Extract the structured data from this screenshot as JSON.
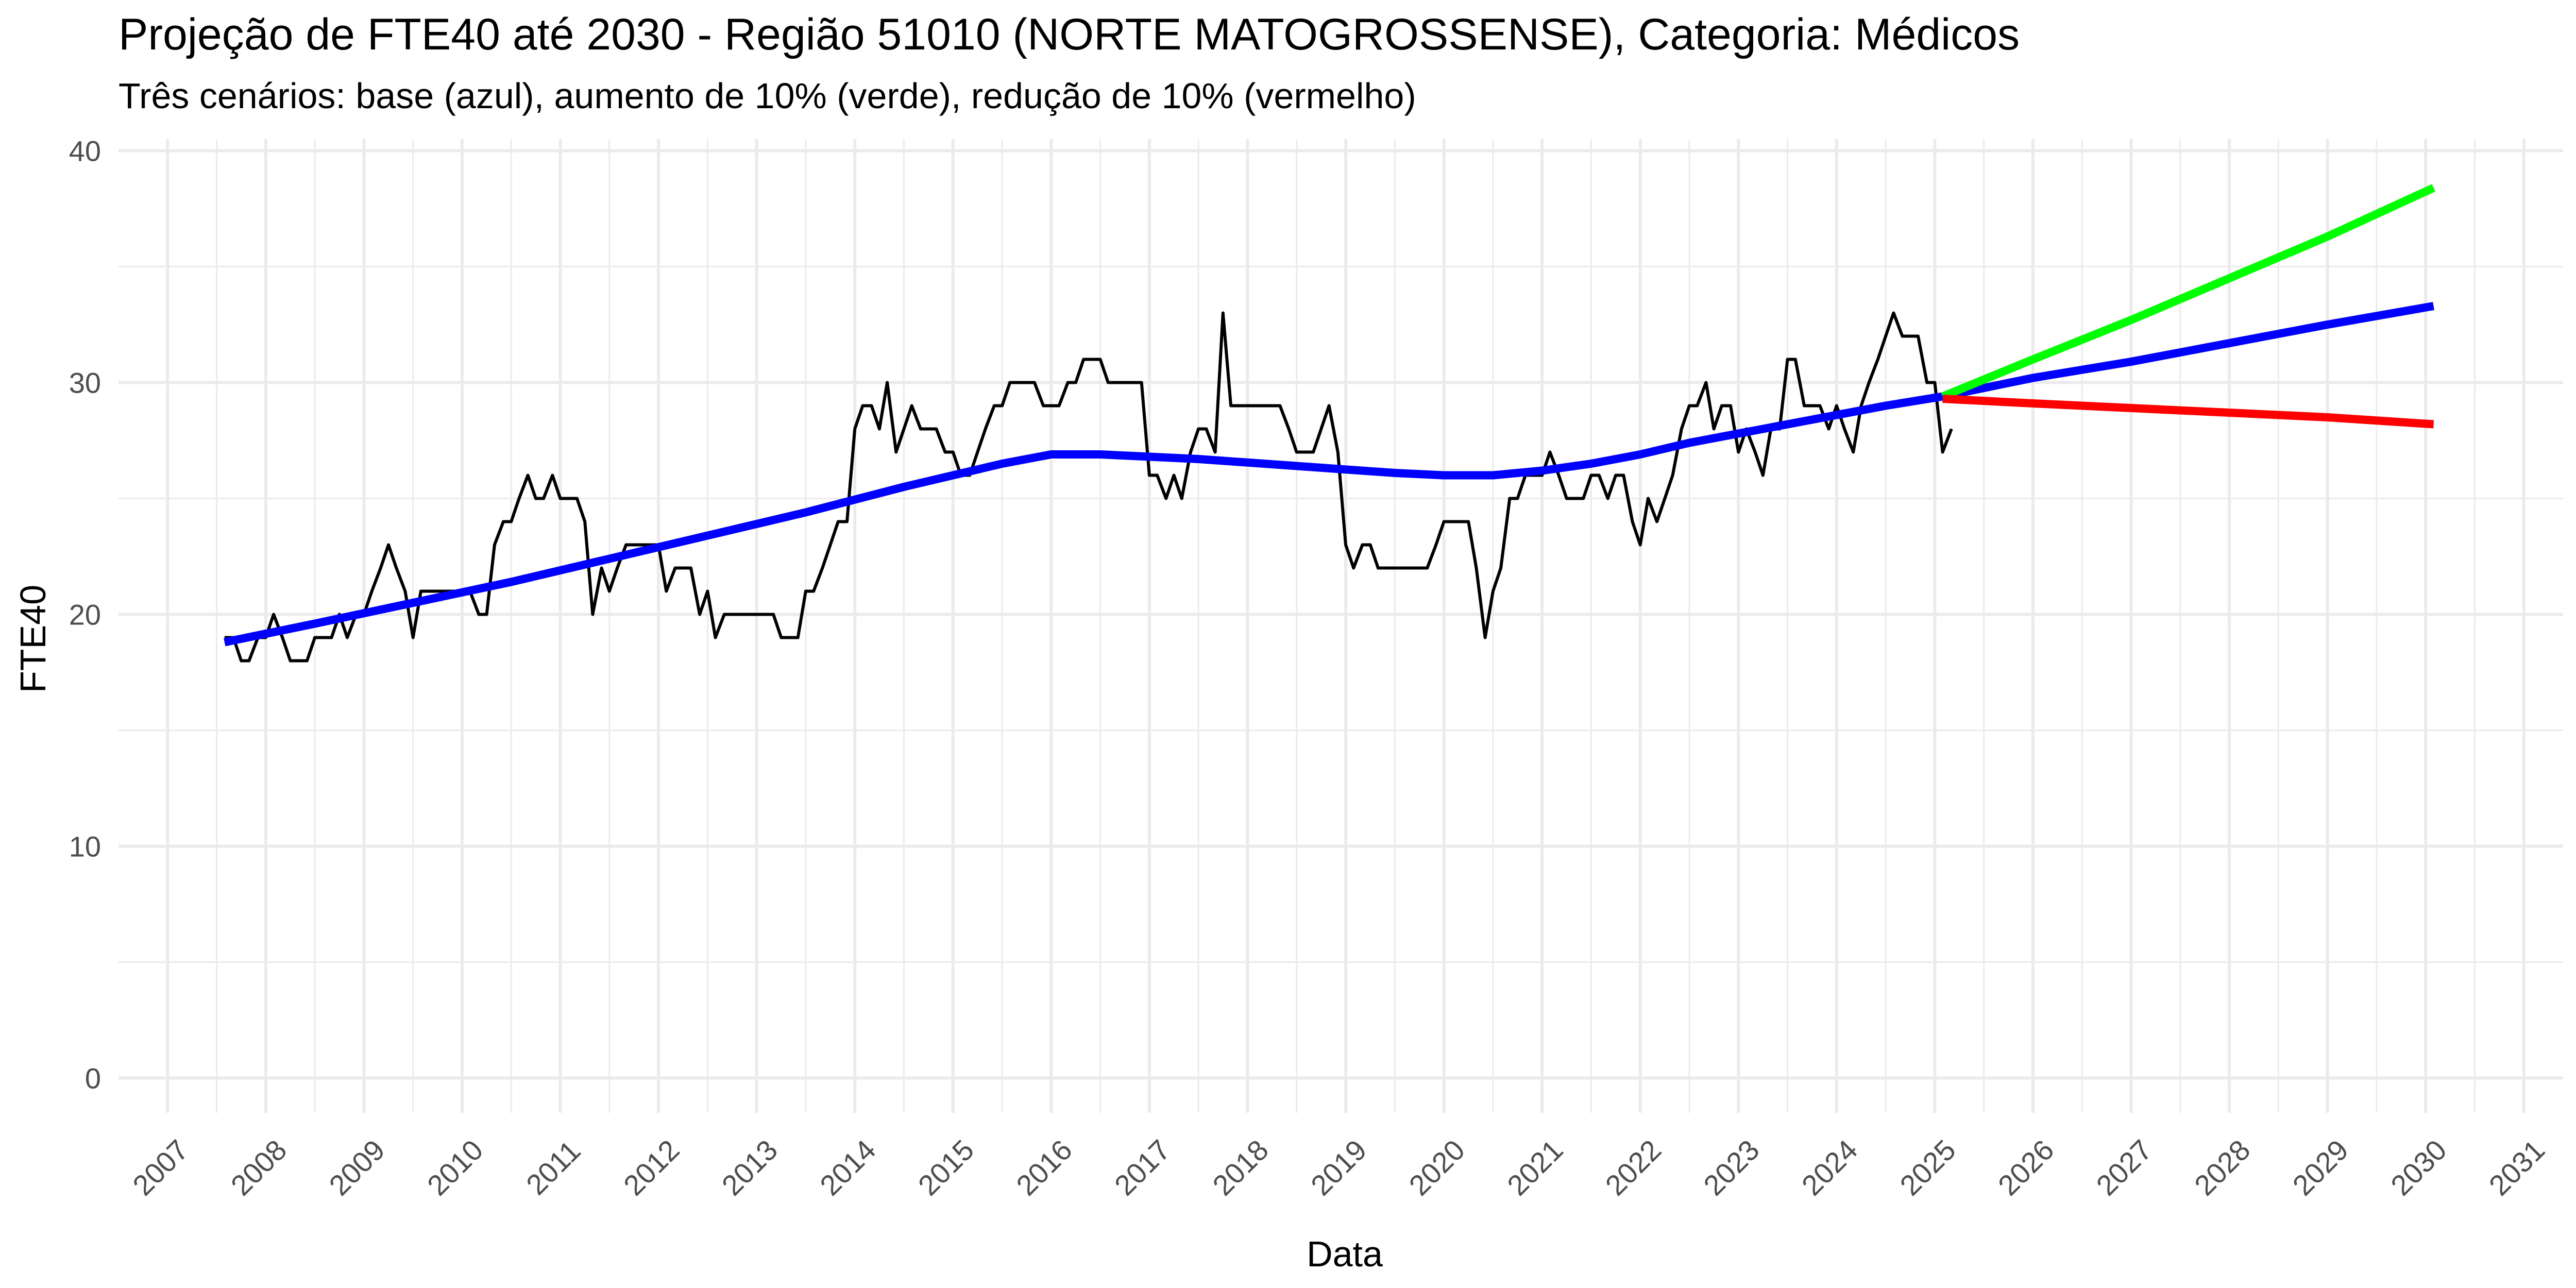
{
  "chart_data": {
    "type": "line",
    "title": "Projeção de FTE40 até 2030 - Região 51010 (NORTE MATOGROSSENSE), Categoria: Médicos",
    "subtitle": "Três cenários: base (azul), aumento de 10% (verde), redução de 10% (vermelho)",
    "xlabel": "Data",
    "ylabel": "FTE40",
    "xlim": [
      2006.5,
      2031.4
    ],
    "ylim": [
      -1.5,
      40.5
    ],
    "y_ticks": [
      0,
      10,
      20,
      30,
      40
    ],
    "x_ticks": [
      2007,
      2008,
      2009,
      2010,
      2011,
      2012,
      2013,
      2014,
      2015,
      2016,
      2017,
      2018,
      2019,
      2020,
      2021,
      2022,
      2023,
      2024,
      2025,
      2026,
      2027,
      2028,
      2029,
      2030,
      2031
    ],
    "grid": true,
    "legend": "none",
    "series": [
      {
        "color": "#000000",
        "points": [
          [
            2007.58,
            19
          ],
          [
            2007.67,
            19
          ],
          [
            2007.75,
            18
          ],
          [
            2007.83,
            18
          ],
          [
            2007.92,
            19
          ],
          [
            2008.0,
            19
          ],
          [
            2008.08,
            20
          ],
          [
            2008.17,
            19
          ],
          [
            2008.25,
            18
          ],
          [
            2008.33,
            18
          ],
          [
            2008.42,
            18
          ],
          [
            2008.5,
            19
          ],
          [
            2008.58,
            19
          ],
          [
            2008.67,
            19
          ],
          [
            2008.75,
            20
          ],
          [
            2008.83,
            19
          ],
          [
            2008.92,
            20
          ],
          [
            2009.0,
            20
          ],
          [
            2009.08,
            21
          ],
          [
            2009.17,
            22
          ],
          [
            2009.25,
            23
          ],
          [
            2009.33,
            22
          ],
          [
            2009.42,
            21
          ],
          [
            2009.5,
            19
          ],
          [
            2009.58,
            21
          ],
          [
            2009.67,
            21
          ],
          [
            2009.75,
            21
          ],
          [
            2009.83,
            21
          ],
          [
            2009.92,
            21
          ],
          [
            2010.0,
            21
          ],
          [
            2010.08,
            21
          ],
          [
            2010.17,
            20
          ],
          [
            2010.25,
            20
          ],
          [
            2010.33,
            23
          ],
          [
            2010.42,
            24
          ],
          [
            2010.5,
            24
          ],
          [
            2010.58,
            25
          ],
          [
            2010.67,
            26
          ],
          [
            2010.75,
            25
          ],
          [
            2010.83,
            25
          ],
          [
            2010.92,
            26
          ],
          [
            2011.0,
            25
          ],
          [
            2011.08,
            25
          ],
          [
            2011.17,
            25
          ],
          [
            2011.25,
            24
          ],
          [
            2011.33,
            20
          ],
          [
            2011.42,
            22
          ],
          [
            2011.5,
            21
          ],
          [
            2011.58,
            22
          ],
          [
            2011.67,
            23
          ],
          [
            2011.75,
            23
          ],
          [
            2011.83,
            23
          ],
          [
            2011.92,
            23
          ],
          [
            2012.0,
            23
          ],
          [
            2012.08,
            21
          ],
          [
            2012.17,
            22
          ],
          [
            2012.25,
            22
          ],
          [
            2012.33,
            22
          ],
          [
            2012.42,
            20
          ],
          [
            2012.5,
            21
          ],
          [
            2012.58,
            19
          ],
          [
            2012.67,
            20
          ],
          [
            2012.75,
            20
          ],
          [
            2012.83,
            20
          ],
          [
            2012.92,
            20
          ],
          [
            2013.0,
            20
          ],
          [
            2013.08,
            20
          ],
          [
            2013.17,
            20
          ],
          [
            2013.25,
            19
          ],
          [
            2013.33,
            19
          ],
          [
            2013.42,
            19
          ],
          [
            2013.5,
            21
          ],
          [
            2013.58,
            21
          ],
          [
            2013.67,
            22
          ],
          [
            2013.75,
            23
          ],
          [
            2013.83,
            24
          ],
          [
            2013.92,
            24
          ],
          [
            2014.0,
            28
          ],
          [
            2014.08,
            29
          ],
          [
            2014.17,
            29
          ],
          [
            2014.25,
            28
          ],
          [
            2014.33,
            30
          ],
          [
            2014.42,
            27
          ],
          [
            2014.5,
            28
          ],
          [
            2014.58,
            29
          ],
          [
            2014.67,
            28
          ],
          [
            2014.75,
            28
          ],
          [
            2014.83,
            28
          ],
          [
            2014.92,
            27
          ],
          [
            2015.0,
            27
          ],
          [
            2015.08,
            26
          ],
          [
            2015.17,
            26
          ],
          [
            2015.25,
            27
          ],
          [
            2015.33,
            28
          ],
          [
            2015.42,
            29
          ],
          [
            2015.5,
            29
          ],
          [
            2015.58,
            30
          ],
          [
            2015.67,
            30
          ],
          [
            2015.75,
            30
          ],
          [
            2015.83,
            30
          ],
          [
            2015.92,
            29
          ],
          [
            2016.0,
            29
          ],
          [
            2016.08,
            29
          ],
          [
            2016.17,
            30
          ],
          [
            2016.25,
            30
          ],
          [
            2016.33,
            31
          ],
          [
            2016.42,
            31
          ],
          [
            2016.5,
            31
          ],
          [
            2016.58,
            30
          ],
          [
            2016.67,
            30
          ],
          [
            2016.75,
            30
          ],
          [
            2016.83,
            30
          ],
          [
            2016.92,
            30
          ],
          [
            2017.0,
            26
          ],
          [
            2017.08,
            26
          ],
          [
            2017.17,
            25
          ],
          [
            2017.25,
            26
          ],
          [
            2017.33,
            25
          ],
          [
            2017.42,
            27
          ],
          [
            2017.5,
            28
          ],
          [
            2017.58,
            28
          ],
          [
            2017.67,
            27
          ],
          [
            2017.75,
            33
          ],
          [
            2017.83,
            29
          ],
          [
            2017.92,
            29
          ],
          [
            2018.0,
            29
          ],
          [
            2018.08,
            29
          ],
          [
            2018.17,
            29
          ],
          [
            2018.25,
            29
          ],
          [
            2018.33,
            29
          ],
          [
            2018.42,
            28
          ],
          [
            2018.5,
            27
          ],
          [
            2018.58,
            27
          ],
          [
            2018.67,
            27
          ],
          [
            2018.75,
            28
          ],
          [
            2018.83,
            29
          ],
          [
            2018.92,
            27
          ],
          [
            2019.0,
            23
          ],
          [
            2019.08,
            22
          ],
          [
            2019.17,
            23
          ],
          [
            2019.25,
            23
          ],
          [
            2019.33,
            22
          ],
          [
            2019.42,
            22
          ],
          [
            2019.5,
            22
          ],
          [
            2019.58,
            22
          ],
          [
            2019.67,
            22
          ],
          [
            2019.75,
            22
          ],
          [
            2019.83,
            22
          ],
          [
            2019.92,
            23
          ],
          [
            2020.0,
            24
          ],
          [
            2020.08,
            24
          ],
          [
            2020.17,
            24
          ],
          [
            2020.25,
            24
          ],
          [
            2020.33,
            22
          ],
          [
            2020.42,
            19
          ],
          [
            2020.5,
            21
          ],
          [
            2020.58,
            22
          ],
          [
            2020.67,
            25
          ],
          [
            2020.75,
            25
          ],
          [
            2020.83,
            26
          ],
          [
            2020.92,
            26
          ],
          [
            2021.0,
            26
          ],
          [
            2021.08,
            27
          ],
          [
            2021.17,
            26
          ],
          [
            2021.25,
            25
          ],
          [
            2021.33,
            25
          ],
          [
            2021.42,
            25
          ],
          [
            2021.5,
            26
          ],
          [
            2021.58,
            26
          ],
          [
            2021.67,
            25
          ],
          [
            2021.75,
            26
          ],
          [
            2021.83,
            26
          ],
          [
            2021.92,
            24
          ],
          [
            2022.0,
            23
          ],
          [
            2022.08,
            25
          ],
          [
            2022.17,
            24
          ],
          [
            2022.25,
            25
          ],
          [
            2022.33,
            26
          ],
          [
            2022.42,
            28
          ],
          [
            2022.5,
            29
          ],
          [
            2022.58,
            29
          ],
          [
            2022.67,
            30
          ],
          [
            2022.75,
            28
          ],
          [
            2022.83,
            29
          ],
          [
            2022.92,
            29
          ],
          [
            2023.0,
            27
          ],
          [
            2023.08,
            28
          ],
          [
            2023.17,
            27
          ],
          [
            2023.25,
            26
          ],
          [
            2023.33,
            28
          ],
          [
            2023.42,
            28
          ],
          [
            2023.5,
            31
          ],
          [
            2023.58,
            31
          ],
          [
            2023.67,
            29
          ],
          [
            2023.75,
            29
          ],
          [
            2023.83,
            29
          ],
          [
            2023.92,
            28
          ],
          [
            2024.0,
            29
          ],
          [
            2024.08,
            28
          ],
          [
            2024.17,
            27
          ],
          [
            2024.25,
            29
          ],
          [
            2024.33,
            30
          ],
          [
            2024.42,
            31
          ],
          [
            2024.5,
            32
          ],
          [
            2024.58,
            33
          ],
          [
            2024.67,
            32
          ],
          [
            2024.75,
            32
          ],
          [
            2024.83,
            32
          ],
          [
            2024.92,
            30
          ],
          [
            2025.0,
            30
          ],
          [
            2025.08,
            27
          ],
          [
            2025.17,
            28
          ]
        ]
      },
      {
        "color": "#0000ff",
        "points": [
          [
            2007.58,
            18.8
          ],
          [
            2008.5,
            19.6
          ],
          [
            2009.5,
            20.5
          ],
          [
            2010.5,
            21.4
          ],
          [
            2011.5,
            22.4
          ],
          [
            2012.5,
            23.4
          ],
          [
            2013.5,
            24.4
          ],
          [
            2014.5,
            25.5
          ],
          [
            2015.5,
            26.5
          ],
          [
            2016.0,
            26.9
          ],
          [
            2016.5,
            26.9
          ],
          [
            2017.5,
            26.7
          ],
          [
            2018.5,
            26.4
          ],
          [
            2019.5,
            26.1
          ],
          [
            2020.0,
            26.0
          ],
          [
            2020.5,
            26.0
          ],
          [
            2021.0,
            26.2
          ],
          [
            2021.5,
            26.5
          ],
          [
            2022.0,
            26.9
          ],
          [
            2022.5,
            27.4
          ],
          [
            2023.0,
            27.8
          ],
          [
            2023.5,
            28.2
          ],
          [
            2024.0,
            28.6
          ],
          [
            2024.5,
            29.0
          ],
          [
            2025.08,
            29.4
          ],
          [
            2026.0,
            30.2
          ],
          [
            2027.0,
            30.9
          ],
          [
            2028.0,
            31.7
          ],
          [
            2029.0,
            32.5
          ],
          [
            2030.08,
            33.3
          ]
        ]
      },
      {
        "color": "#00ff00",
        "points": [
          [
            2025.08,
            29.4
          ],
          [
            2026.0,
            31.0
          ],
          [
            2027.0,
            32.7
          ],
          [
            2028.0,
            34.5
          ],
          [
            2029.0,
            36.3
          ],
          [
            2030.08,
            38.4
          ]
        ]
      },
      {
        "color": "#ff0000",
        "points": [
          [
            2025.08,
            29.3
          ],
          [
            2026.0,
            29.1
          ],
          [
            2027.0,
            28.9
          ],
          [
            2028.0,
            28.7
          ],
          [
            2029.0,
            28.5
          ],
          [
            2030.08,
            28.2
          ]
        ]
      }
    ]
  }
}
